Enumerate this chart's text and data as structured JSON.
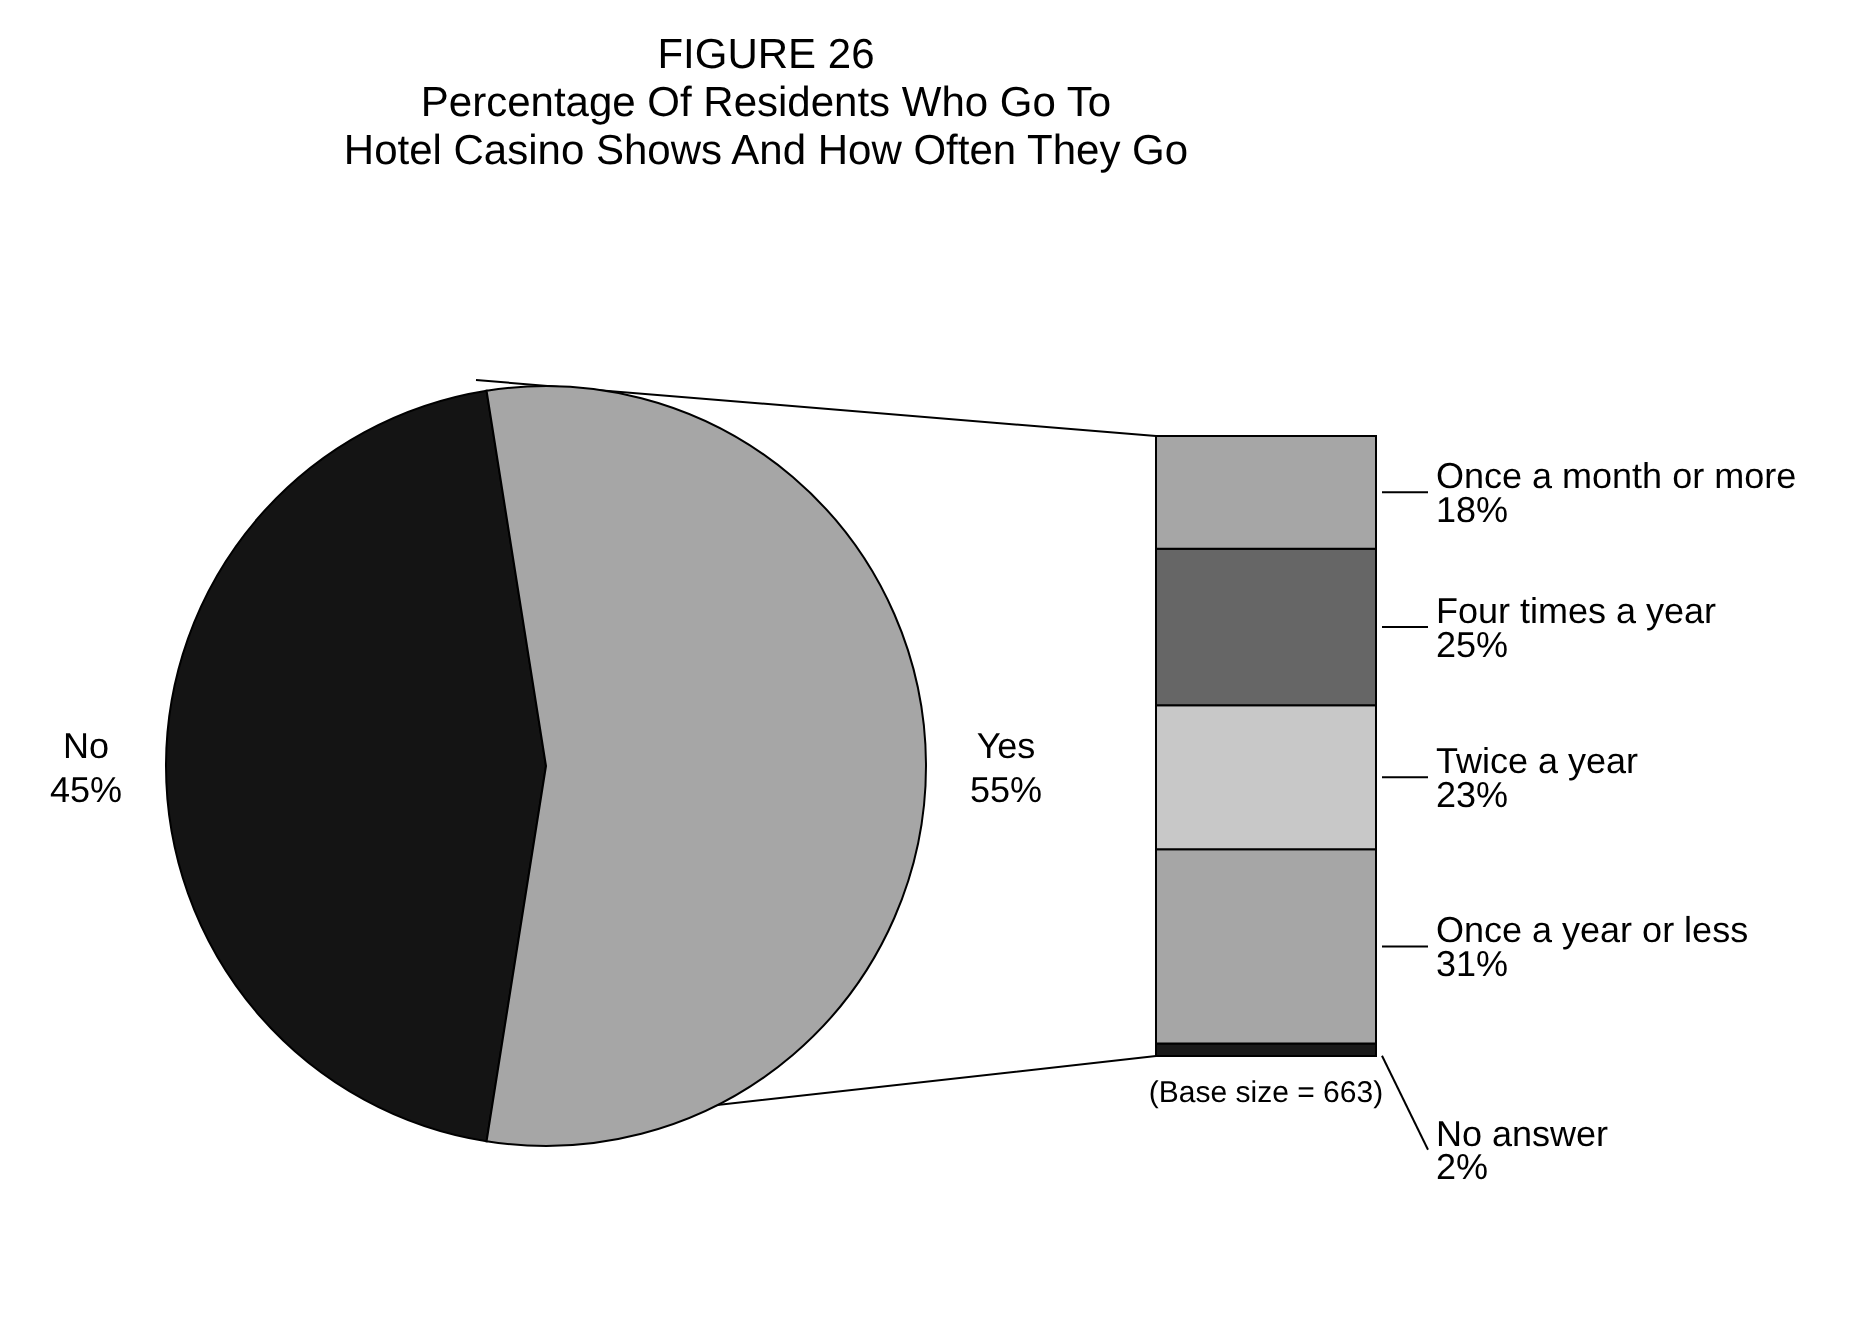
{
  "chart_data": [
    {
      "type": "pie",
      "title": "FIGURE 26\nPercentage Of Residents Who Go To\nHotel Casino Shows And How Often They Go",
      "categories": [
        "No",
        "Yes"
      ],
      "values": [
        45,
        55
      ],
      "value_labels": [
        "45%",
        "55%"
      ],
      "colors": [
        "#141414",
        "#a6a6a6"
      ]
    },
    {
      "type": "bar",
      "stacked": true,
      "categories": [
        null
      ],
      "annotations": [
        "(Base size = 663)"
      ],
      "series": [
        {
          "name": "No answer",
          "color": "#1a1a1a",
          "values": [
            2
          ],
          "value_labels": [
            "2%"
          ]
        },
        {
          "name": "Once a year or less",
          "color": "#a6a6a6",
          "values": [
            31
          ],
          "value_labels": [
            "31%"
          ]
        },
        {
          "name": "Twice a year",
          "color": "#c8c8c8",
          "values": [
            23
          ],
          "value_labels": [
            "23%"
          ]
        },
        {
          "name": "Four times a year",
          "color": "#666666",
          "values": [
            25
          ],
          "value_labels": [
            "25%"
          ]
        },
        {
          "name": "Once a month or more",
          "color": "#a6a6a6",
          "values": [
            18
          ],
          "value_labels": [
            "18%"
          ]
        }
      ]
    }
  ]
}
